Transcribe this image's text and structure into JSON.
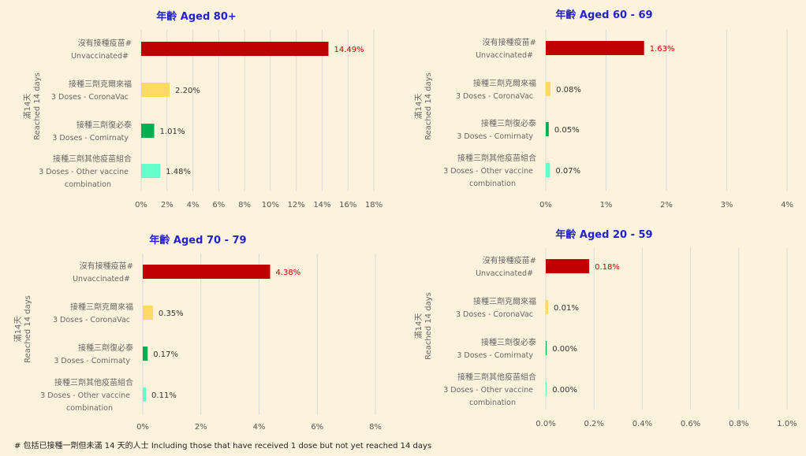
{
  "colors": {
    "background": "#fdf3dc",
    "title": "#2222cc",
    "grid": "#d9d9d9",
    "axis_text": "#555555",
    "label_text": "#666666",
    "value_text": "#333333",
    "value_text_highlight": "#cc0000",
    "series": [
      "#c00000",
      "#ffd966",
      "#00b050",
      "#66ffcc"
    ]
  },
  "footnote": "# 包括已接種一劑但未滿 14 天的人士 Including those that have received 1 dose but not yet reached 14 days",
  "chart_data": [
    {
      "type": "bar",
      "orientation": "horizontal",
      "title": "年齡 Aged 80+",
      "ylabel": [
        "滿14天",
        "Reached 14 days"
      ],
      "categories": [
        [
          "沒有接種疫苗#",
          "Unvaccinated#"
        ],
        [
          "接種三劑克爾來福",
          "3 Doses - CoronaVac"
        ],
        [
          "接種三劑復必泰",
          "3 Doses - Comirnaty"
        ],
        [
          "接種三劑其他疫苗組合",
          "3 Doses - Other vaccine",
          "combination"
        ]
      ],
      "values": [
        14.49,
        2.2,
        1.01,
        1.48
      ],
      "value_labels": [
        "14.49%",
        "2.20%",
        "1.01%",
        "1.48%"
      ],
      "xlim": [
        0,
        18
      ],
      "xticks": [
        0,
        2,
        4,
        6,
        8,
        10,
        12,
        14,
        16,
        18
      ],
      "xtick_labels": [
        "0%",
        "2%",
        "4%",
        "6%",
        "8%",
        "10%",
        "12%",
        "14%",
        "16%",
        "18%"
      ],
      "grid": true
    },
    {
      "type": "bar",
      "orientation": "horizontal",
      "title": "年齡 Aged 60 - 69",
      "ylabel": [
        "滿14天",
        "Reached 14 days"
      ],
      "categories": [
        [
          "沒有接種疫苗#",
          "Unvaccinated#"
        ],
        [
          "接種三劑克爾來福",
          "3 Doses - CoronaVac"
        ],
        [
          "接種三劑復必泰",
          "3 Doses - Comirnaty"
        ],
        [
          "接種三劑其他疫苗組合",
          "3 Doses - Other vaccine",
          "combination"
        ]
      ],
      "values": [
        1.63,
        0.08,
        0.05,
        0.07
      ],
      "value_labels": [
        "1.63%",
        "0.08%",
        "0.05%",
        "0.07%"
      ],
      "xlim": [
        0,
        4
      ],
      "xticks": [
        0,
        1,
        2,
        3,
        4
      ],
      "xtick_labels": [
        "0%",
        "1%",
        "2%",
        "3%",
        "4%"
      ],
      "grid": true
    },
    {
      "type": "bar",
      "orientation": "horizontal",
      "title": "年齡 Aged 70 - 79",
      "ylabel": [
        "滿14天",
        "Reached 14 days"
      ],
      "categories": [
        [
          "沒有接種疫苗#",
          "Unvaccinated#"
        ],
        [
          "接種三劑克爾來福",
          "3 Doses - CoronaVac"
        ],
        [
          "接種三劑復必泰",
          "3 Doses - Comirnaty"
        ],
        [
          "接種三劑其他疫苗組合",
          "3 Doses - Other vaccine",
          "combination"
        ]
      ],
      "values": [
        4.38,
        0.35,
        0.17,
        0.11
      ],
      "value_labels": [
        "4.38%",
        "0.35%",
        "0.17%",
        "0.11%"
      ],
      "xlim": [
        0,
        8
      ],
      "xticks": [
        0,
        2,
        4,
        6,
        8
      ],
      "xtick_labels": [
        "0%",
        "2%",
        "4%",
        "6%",
        "8%"
      ],
      "grid": true
    },
    {
      "type": "bar",
      "orientation": "horizontal",
      "title": "年齡 Aged 20 - 59",
      "ylabel": [
        "滿14天",
        "Reached 14 days"
      ],
      "categories": [
        [
          "沒有接種疫苗#",
          "Unvaccinated#"
        ],
        [
          "接種三劑克爾來福",
          "3 Doses - CoronaVac"
        ],
        [
          "接種三劑復必泰",
          "3 Doses - Comirnaty"
        ],
        [
          "接種三劑其他疫苗組合",
          "3 Doses - Other vaccine",
          "combination"
        ]
      ],
      "values": [
        0.18,
        0.01,
        0.0,
        0.0
      ],
      "value_labels": [
        "0.18%",
        "0.01%",
        "0.00%",
        "0.00%"
      ],
      "xlim": [
        0,
        1.0
      ],
      "xticks": [
        0,
        0.2,
        0.4,
        0.6,
        0.8,
        1.0
      ],
      "xtick_labels": [
        "0.0%",
        "0.2%",
        "0.4%",
        "0.6%",
        "0.8%",
        "1.0%"
      ],
      "grid": true
    }
  ]
}
